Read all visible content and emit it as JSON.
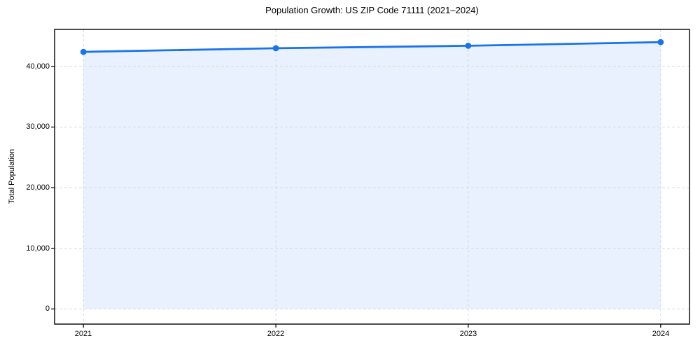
{
  "page": {
    "background": "#ffffff"
  },
  "chart_data": {
    "type": "area",
    "title": "Population Growth: US ZIP Code 71111 (2021–2024)",
    "xlabel": "",
    "ylabel": "Total Population",
    "x": [
      2021,
      2022,
      2023,
      2024
    ],
    "series": [
      {
        "name": "Total Population",
        "values": [
          42400,
          43000,
          43400,
          44000
        ]
      }
    ],
    "baseline": 0,
    "xticks": {
      "values": [
        2021,
        2022,
        2023,
        2024
      ],
      "labels": [
        "2021",
        "2022",
        "2023",
        "2024"
      ]
    },
    "yticks": {
      "values": [
        0,
        10000,
        20000,
        30000,
        40000
      ],
      "labels": [
        "0",
        "10,000",
        "20,000",
        "30,000",
        "40,000"
      ]
    },
    "xlim": [
      2020.85,
      2024.15
    ],
    "ylim": [
      -2500,
      46100
    ],
    "grid": true,
    "grid_style": "dashed",
    "legend": false,
    "colors": {
      "line": "#1a73e8",
      "marker": "#1a73e8",
      "fill": "#1a73e8",
      "fill_opacity": 0.1,
      "grid": "#dadada",
      "axis": "#000000",
      "text": "#000000",
      "background": "#ffffff"
    }
  }
}
